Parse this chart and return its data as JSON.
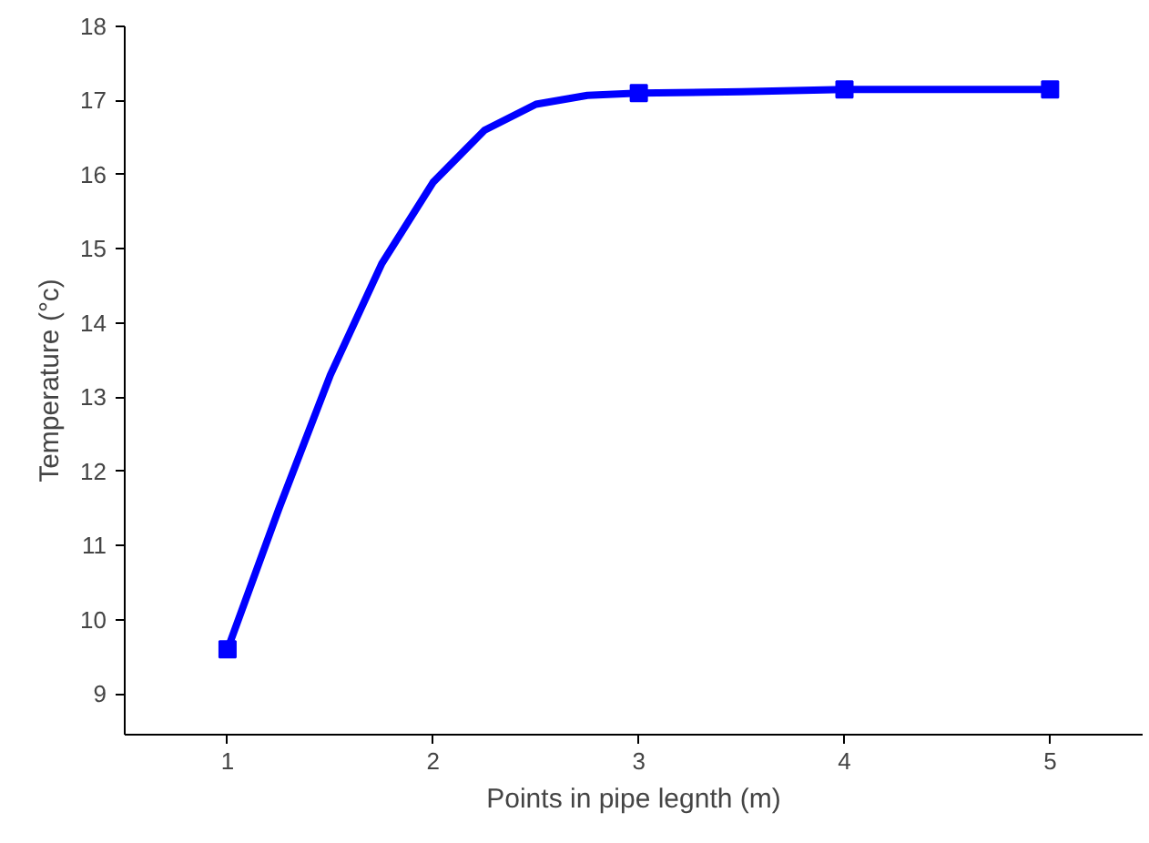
{
  "chart_data": {
    "type": "line",
    "xlabel": "Points in pipe legnth (m)",
    "ylabel": "Temperature (°c)",
    "x": [
      1,
      1.25,
      1.5,
      1.75,
      2,
      2.25,
      2.5,
      2.75,
      3,
      3.5,
      4,
      4.5,
      5
    ],
    "series": [
      {
        "color": "#0000ff",
        "marker": "none",
        "values": [
          9.6,
          11.5,
          13.3,
          14.8,
          15.9,
          16.6,
          16.95,
          17.07,
          17.1,
          17.12,
          17.15,
          17.15,
          17.15
        ]
      },
      {
        "type": "scatter",
        "color": "#0000ff",
        "marker": "square",
        "x": [
          1,
          3,
          4,
          5
        ],
        "values": [
          9.6,
          17.1,
          17.15,
          17.15
        ]
      }
    ],
    "xlim": [
      0.5,
      5.45
    ],
    "xticks": [
      1,
      2,
      3,
      4,
      5
    ],
    "ylim": [
      8.45,
      18
    ],
    "yticks": [
      9,
      10,
      11,
      12,
      13,
      14,
      15,
      16,
      17,
      18
    ],
    "line_style": "solid"
  }
}
